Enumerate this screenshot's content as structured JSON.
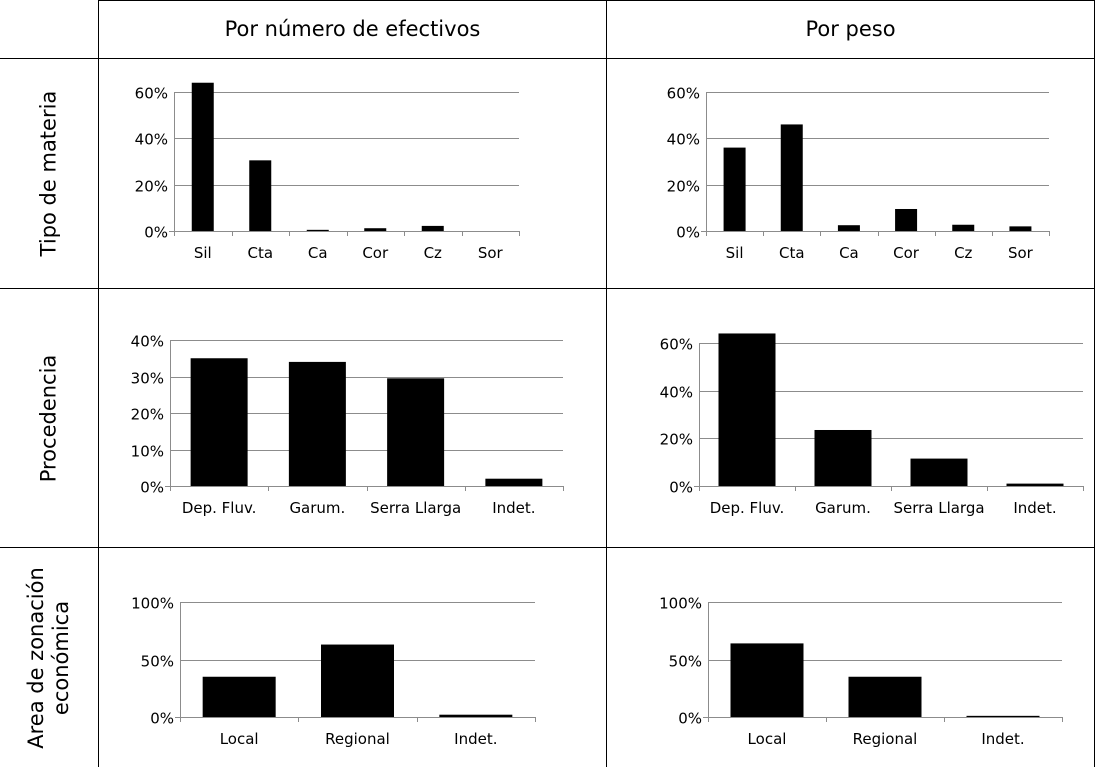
{
  "column_headers": [
    "Por número de efectivos",
    "Por peso"
  ],
  "row_labels": [
    "Tipo de materia",
    "Procedencia",
    "Area de zonación\neconómica"
  ],
  "row_labels_lines": [
    [
      "Tipo de materia"
    ],
    [
      "Procedencia"
    ],
    [
      "Area de zonación",
      "económica"
    ]
  ],
  "chart_data": [
    {
      "type": "bar",
      "row": "Tipo de materia",
      "column": "Por número de efectivos",
      "categories": [
        "Sil",
        "Cta",
        "Ca",
        "Cor",
        "Cz",
        "Sor"
      ],
      "values": [
        64,
        30.5,
        0.5,
        1.2,
        2.2,
        0
      ],
      "ylim": [
        0,
        60
      ],
      "yticks": [
        "0%",
        "20%",
        "40%",
        "60%"
      ],
      "grid": true
    },
    {
      "type": "bar",
      "row": "Tipo de materia",
      "column": "Por peso",
      "categories": [
        "Sil",
        "Cta",
        "Ca",
        "Cor",
        "Cz",
        "Sor"
      ],
      "values": [
        36,
        46,
        2.5,
        9.5,
        2.7,
        2
      ],
      "ylim": [
        0,
        60
      ],
      "yticks": [
        "0%",
        "20%",
        "40%",
        "60%"
      ],
      "grid": true
    },
    {
      "type": "bar",
      "row": "Procedencia",
      "column": "Por número de efectivos",
      "categories": [
        "Dep. Fluv.",
        "Garum.",
        "Serra Llarga",
        "Indet."
      ],
      "values": [
        35,
        34,
        29.5,
        2
      ],
      "ylim": [
        0,
        40
      ],
      "yticks": [
        "0%",
        "10%",
        "20%",
        "30%",
        "40%"
      ],
      "grid": true
    },
    {
      "type": "bar",
      "row": "Procedencia",
      "column": "Por peso",
      "categories": [
        "Dep. Fluv.",
        "Garum.",
        "Serra Llarga",
        "Indet."
      ],
      "values": [
        64,
        23.5,
        11.5,
        1
      ],
      "ylim": [
        0,
        60
      ],
      "yticks": [
        "0%",
        "20%",
        "40%",
        "60%"
      ],
      "grid": true
    },
    {
      "type": "bar",
      "row": "Area de zonación económica",
      "column": "Por número de efectivos",
      "categories": [
        "Local",
        "Regional",
        "Indet."
      ],
      "values": [
        35,
        63,
        2
      ],
      "ylim": [
        0,
        100
      ],
      "yticks": [
        "0%",
        "50%",
        "100%"
      ],
      "grid": true
    },
    {
      "type": "bar",
      "row": "Area de zonación económica",
      "column": "Por peso",
      "categories": [
        "Local",
        "Regional",
        "Indet."
      ],
      "values": [
        64,
        35,
        1
      ],
      "ylim": [
        0,
        100
      ],
      "yticks": [
        "0%",
        "50%",
        "100%"
      ],
      "grid": true
    }
  ]
}
